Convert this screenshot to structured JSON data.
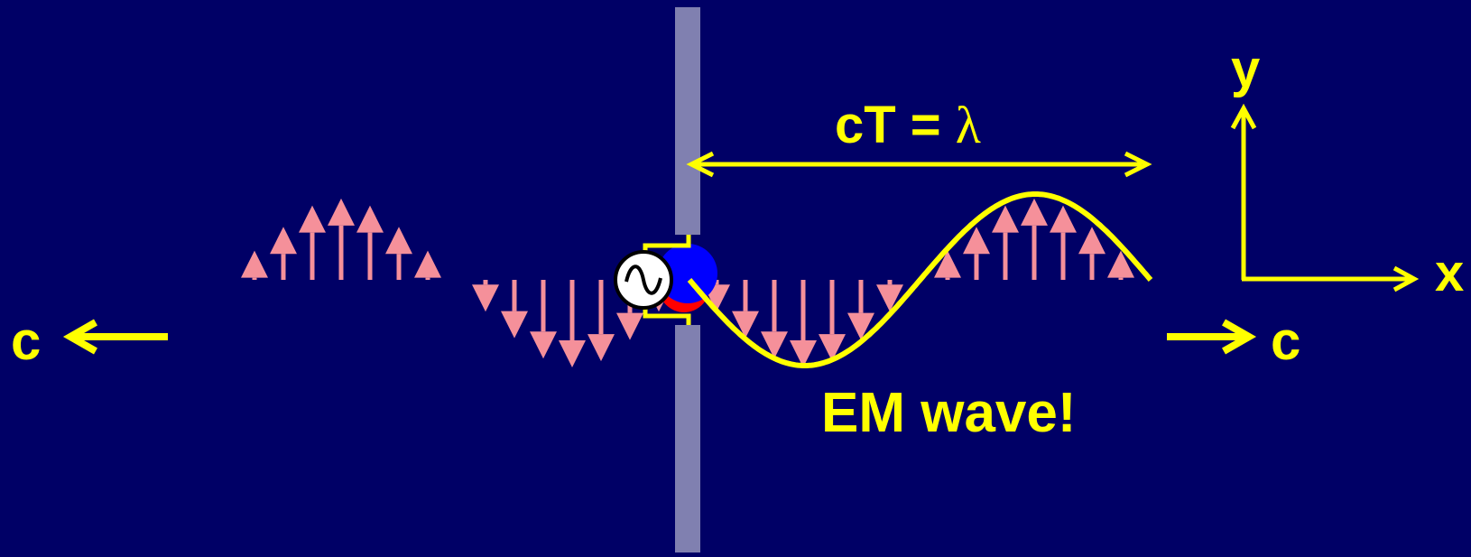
{
  "labels": {
    "wavelength_prefix": "cT = ",
    "wavelength_symbol": "λ",
    "y_axis": "y",
    "x_axis": "x",
    "speed_left": "c",
    "speed_right": "c",
    "wave_caption": "EM wave!"
  },
  "colors": {
    "background": "#000066",
    "accent": "#ffff00",
    "field_arrows": "#f5909a",
    "antenna": "#8080b0",
    "charge_positive": "#0000ff",
    "charge_negative": "#ff0000"
  },
  "field": {
    "upper_left_heights": [
      0.33,
      0.6,
      0.84,
      0.92,
      0.84,
      0.6,
      0.33
    ],
    "lower_left_heights": [
      -0.36,
      -0.66,
      -0.89,
      -0.99,
      -0.92,
      -0.68,
      -0.36
    ],
    "right_lower_heights": [
      -0.36,
      -0.66,
      -0.89,
      -0.99,
      -0.92,
      -0.68,
      -0.36
    ],
    "right_upper_heights": [
      0.33,
      0.6,
      0.84,
      0.92,
      0.84,
      0.6,
      0.33
    ]
  }
}
